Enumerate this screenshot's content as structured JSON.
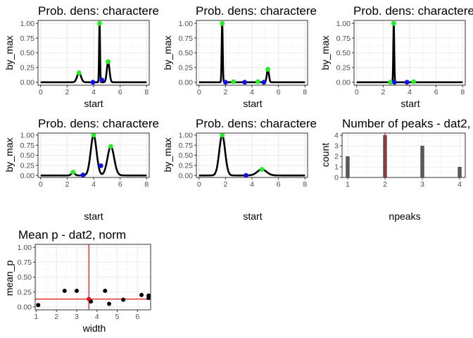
{
  "chart_data": [
    {
      "type": "line",
      "title": "Prob. dens: charactere",
      "xlabel": "start",
      "ylabel": "by_max",
      "xlim": [
        -0.2,
        8.2
      ],
      "ylim": [
        -0.05,
        1.05
      ],
      "xticks": [
        "0",
        "2",
        "4",
        "6",
        "8"
      ],
      "yticks": [
        "0.00",
        "0.25",
        "0.50",
        "0.75",
        "1.00"
      ],
      "grid": true,
      "peaks": [
        {
          "mu": 2.9,
          "sd": 0.15,
          "h": 0.16
        },
        {
          "mu": 4.45,
          "sd": 0.035,
          "h": 1.0
        },
        {
          "mu": 5.1,
          "sd": 0.1,
          "h": 0.35
        }
      ],
      "curve_range": [
        0,
        8
      ],
      "green_points": [
        [
          2.9,
          0.16
        ],
        [
          4.45,
          1.0
        ],
        [
          5.1,
          0.35
        ]
      ],
      "blue_points": [
        [
          3.95,
          0.0
        ],
        [
          4.62,
          0.04
        ]
      ]
    },
    {
      "type": "line",
      "title": "Prob. dens: charactere",
      "xlabel": "start",
      "ylabel": "by_max",
      "xlim": [
        -0.2,
        8.2
      ],
      "ylim": [
        -0.05,
        1.05
      ],
      "xticks": [
        "0",
        "2",
        "4",
        "6",
        "8"
      ],
      "yticks": [
        "0.00",
        "0.25",
        "0.50",
        "0.75",
        "1.00"
      ],
      "grid": true,
      "peaks": [
        {
          "mu": 1.75,
          "sd": 0.04,
          "h": 1.0
        },
        {
          "mu": 5.2,
          "sd": 0.08,
          "h": 0.22
        }
      ],
      "curve_range": [
        0,
        8
      ],
      "green_points": [
        [
          1.75,
          1.0
        ],
        [
          2.6,
          0.01
        ],
        [
          4.45,
          0.01
        ],
        [
          5.2,
          0.22
        ]
      ],
      "blue_points": [
        [
          2.0,
          0.0
        ],
        [
          3.45,
          0.0
        ],
        [
          4.9,
          0.0
        ]
      ]
    },
    {
      "type": "line",
      "title": "Prob. dens: charactere",
      "xlabel": "start",
      "ylabel": "by_max",
      "xlim": [
        -0.2,
        8.2
      ],
      "ylim": [
        -0.05,
        1.05
      ],
      "xticks": [
        "0",
        "2",
        "4",
        "6",
        "8"
      ],
      "yticks": [
        "0.00",
        "0.25",
        "0.50",
        "0.75",
        "1.00"
      ],
      "grid": true,
      "peaks": [
        {
          "mu": 2.8,
          "sd": 0.035,
          "h": 1.0
        }
      ],
      "curve_range": [
        0,
        8
      ],
      "green_points": [
        [
          2.8,
          1.0
        ],
        [
          2.55,
          0.0
        ],
        [
          4.3,
          0.01
        ]
      ],
      "blue_points": [
        [
          2.85,
          0.0
        ],
        [
          3.8,
          0.0
        ]
      ]
    },
    {
      "type": "line",
      "title": "Prob. dens: charactere",
      "xlabel": "start",
      "ylabel": "by_max",
      "xlim": [
        -0.2,
        8.2
      ],
      "ylim": [
        -0.05,
        1.05
      ],
      "xticks": [
        "0",
        "2",
        "4",
        "6",
        "8"
      ],
      "yticks": [
        "0.00",
        "0.25",
        "0.50",
        "0.75",
        "1.00"
      ],
      "grid": true,
      "peaks": [
        {
          "mu": 2.45,
          "sd": 0.12,
          "h": 0.08
        },
        {
          "mu": 4.0,
          "sd": 0.22,
          "h": 1.0
        },
        {
          "mu": 5.3,
          "sd": 0.25,
          "h": 0.72
        }
      ],
      "curve_range": [
        0,
        8
      ],
      "green_points": [
        [
          2.45,
          0.08
        ],
        [
          4.0,
          1.0
        ],
        [
          5.3,
          0.72
        ]
      ],
      "blue_points": [
        [
          3.2,
          0.01
        ],
        [
          4.55,
          0.24
        ]
      ]
    },
    {
      "type": "line",
      "title": "Prob. dens: charactere",
      "xlabel": "start",
      "ylabel": "by_max",
      "xlim": [
        -0.2,
        8.2
      ],
      "ylim": [
        -0.05,
        1.05
      ],
      "xticks": [
        "0",
        "2",
        "4",
        "6",
        "8"
      ],
      "yticks": [
        "0.00",
        "0.25",
        "0.50",
        "0.75",
        "1.00"
      ],
      "grid": true,
      "peaks": [
        {
          "mu": 1.75,
          "sd": 0.22,
          "h": 1.0
        },
        {
          "mu": 4.75,
          "sd": 0.35,
          "h": 0.15
        }
      ],
      "curve_range": [
        0,
        8
      ],
      "green_points": [
        [
          1.75,
          1.0
        ],
        [
          4.75,
          0.15
        ]
      ],
      "blue_points": [
        [
          3.55,
          0.0
        ]
      ]
    },
    {
      "type": "bar",
      "title": "Number of peaks - dat2,",
      "xlabel": "npeaks",
      "ylabel": "count",
      "xlim": [
        0.85,
        4.15
      ],
      "ylim": [
        0,
        4.2
      ],
      "xticks": [
        "1",
        "2",
        "3",
        "4"
      ],
      "yticks": [
        "0",
        "1",
        "2",
        "3",
        "4"
      ],
      "grid": true,
      "x": [
        1,
        2,
        3,
        4
      ],
      "values": [
        2,
        4,
        3,
        1
      ],
      "vline": 2
    },
    {
      "type": "scatter",
      "title": "Mean p - dat2, norm",
      "xlabel": "width",
      "ylabel": "mean_p",
      "xlim": [
        0.95,
        6.65
      ],
      "ylim": [
        -0.05,
        1.05
      ],
      "xticks": [
        "1",
        "2",
        "3",
        "4",
        "5",
        "6"
      ],
      "yticks": [
        "0.00",
        "0.25",
        "0.50",
        "0.75",
        "1.00"
      ],
      "grid": true,
      "points": [
        [
          1.1,
          0.03
        ],
        [
          2.4,
          0.27
        ],
        [
          3.0,
          0.27
        ],
        [
          3.6,
          0.13
        ],
        [
          3.7,
          0.09
        ],
        [
          4.4,
          0.27
        ],
        [
          4.6,
          0.05
        ],
        [
          5.3,
          0.12
        ],
        [
          6.2,
          0.2
        ],
        [
          6.55,
          0.19
        ],
        [
          6.55,
          0.15
        ]
      ],
      "mean_point": [
        3.6,
        0.13
      ],
      "vline": 3.6,
      "hline": 0.13
    }
  ]
}
